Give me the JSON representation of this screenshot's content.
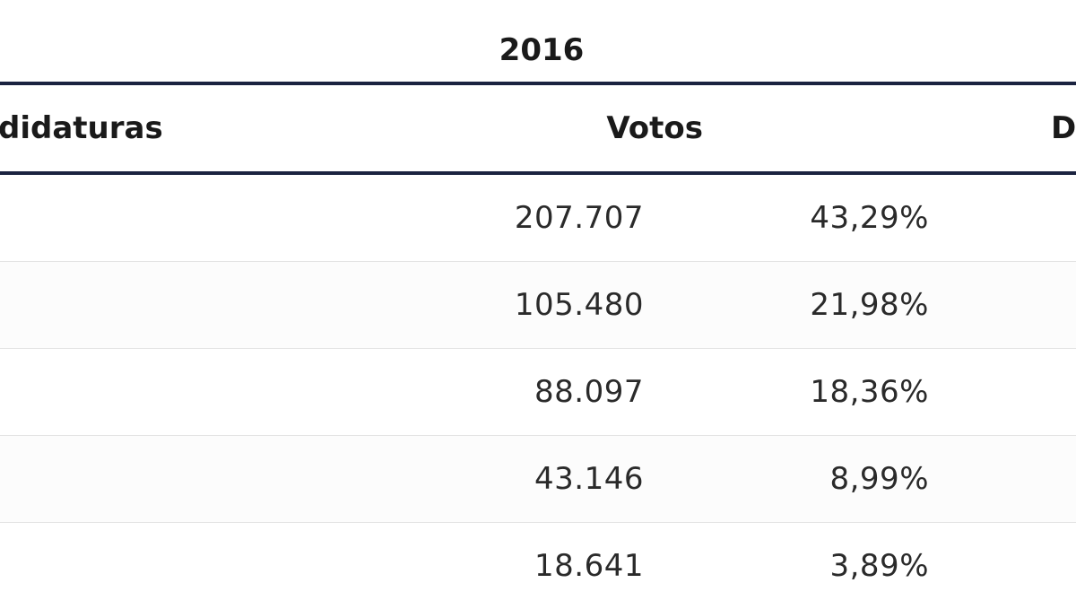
{
  "table": {
    "year": "2016",
    "headers": {
      "candidaturas": "didaturas",
      "votos": "Votos",
      "diputados": "D"
    },
    "rows": [
      {
        "votos": "207.707",
        "pct": "43,29%"
      },
      {
        "votos": "105.480",
        "pct": "21,98%"
      },
      {
        "votos": "88.097",
        "pct": "18,36%"
      },
      {
        "votos": "43.146",
        "pct": "8,99%"
      },
      {
        "votos": "18.641",
        "pct": "3,89%"
      }
    ]
  },
  "colors": {
    "rule": "#1b2340",
    "row_separator": "#e3e3e3"
  }
}
